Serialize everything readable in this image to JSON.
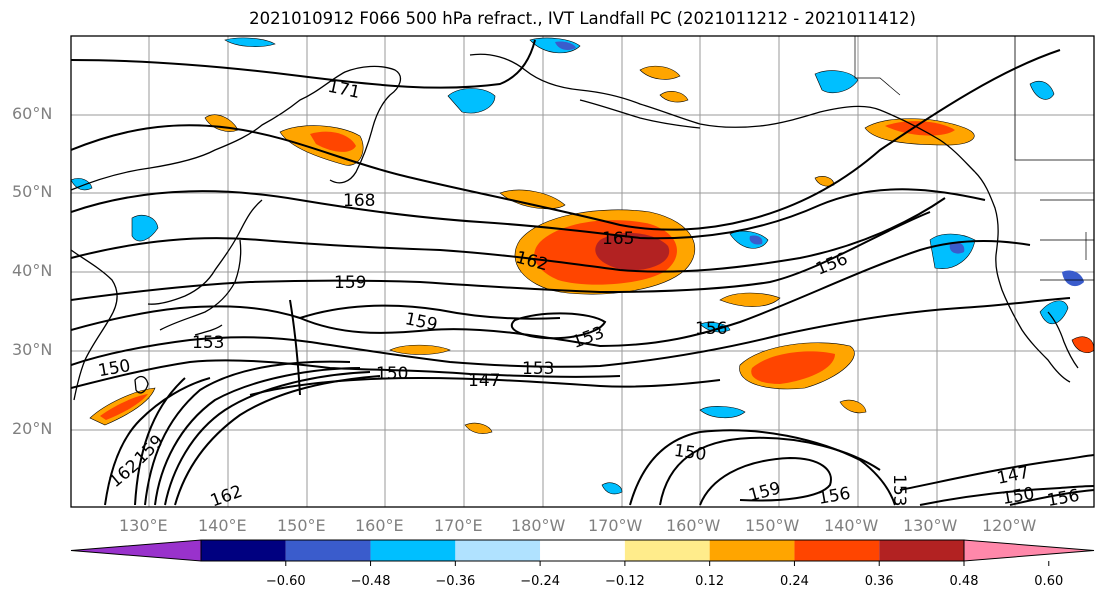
{
  "title": "2021010912 F066 500 hPa refract., IVT Landfall PC (2021011212 - 2021011412)",
  "lat_labels": [
    "60°N",
    "50°N",
    "40°N",
    "30°N",
    "20°N"
  ],
  "lon_labels": [
    "130°E",
    "140°E",
    "150°E",
    "160°E",
    "170°E",
    "180°W",
    "170°W",
    "160°W",
    "150°W",
    "140°W",
    "130°W",
    "120°W"
  ],
  "contour_labels": [
    "171",
    "168",
    "165",
    "162",
    "159",
    "159",
    "156",
    "156",
    "156",
    "153",
    "153",
    "153",
    "150",
    "150",
    "150",
    "147",
    "147",
    "159",
    "162",
    "162",
    "159",
    "150",
    "156",
    "153"
  ],
  "colorbar": {
    "ticks": [
      "−0.60",
      "−0.48",
      "−0.36",
      "−0.24",
      "−0.12",
      "0.12",
      "0.24",
      "0.36",
      "0.48",
      "0.60"
    ],
    "colors": [
      "#9932cc",
      "#000080",
      "#3a5ccc",
      "#00bfff",
      "#b0e2ff",
      "#ffffff",
      "#ffec8b",
      "#ffa500",
      "#ff4500",
      "#b22222",
      "#ff88aa"
    ]
  },
  "colors": {
    "land": "#000000",
    "grid": "#9a9a9a",
    "contour": "#000000"
  }
}
